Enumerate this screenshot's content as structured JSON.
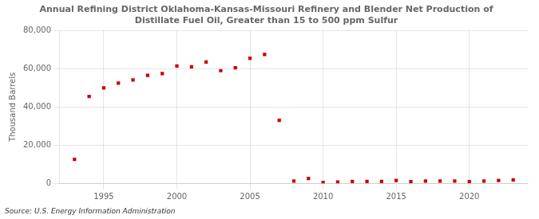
{
  "chart_data": {
    "type": "scatter",
    "title": "Annual Refining District Oklahoma-Kansas-Missouri Refinery and Blender Net Production of\nDistillate Fuel Oil, Greater than 15 to 500 ppm Sulfur",
    "y_label": "Thousand Barrels",
    "source": "Source: U.S. Energy Information Administration",
    "x": [
      1993,
      1994,
      1995,
      1996,
      1997,
      1998,
      1999,
      2000,
      2001,
      2002,
      2003,
      2004,
      2005,
      2006,
      2007,
      2008,
      2009,
      2010,
      2011,
      2012,
      2013,
      2014,
      2015,
      2016,
      2017,
      2018,
      2019,
      2020,
      2021,
      2022,
      2023
    ],
    "values": [
      12500,
      45500,
      50000,
      52500,
      54200,
      56500,
      57500,
      61500,
      61000,
      63500,
      59000,
      60500,
      65500,
      67500,
      33000,
      1200,
      2500,
      500,
      700,
      1000,
      1000,
      1000,
      1500,
      900,
      1200,
      1200,
      1200,
      900,
      1200,
      1500,
      1800
    ],
    "color": "#cc0000",
    "marker": "square",
    "xlim": [
      1992.0,
      2024.0
    ],
    "ylim": [
      0,
      80000
    ],
    "xticks": [
      1995,
      2000,
      2005,
      2010,
      2015,
      2020
    ],
    "yticks": [
      0,
      {
        "value": 20000,
        "label": "20,000"
      },
      {
        "value": 40000,
        "label": "40,000"
      },
      {
        "value": 60000,
        "label": "60,000"
      },
      {
        "value": 80000,
        "label": "80,000"
      }
    ],
    "grid": true
  }
}
